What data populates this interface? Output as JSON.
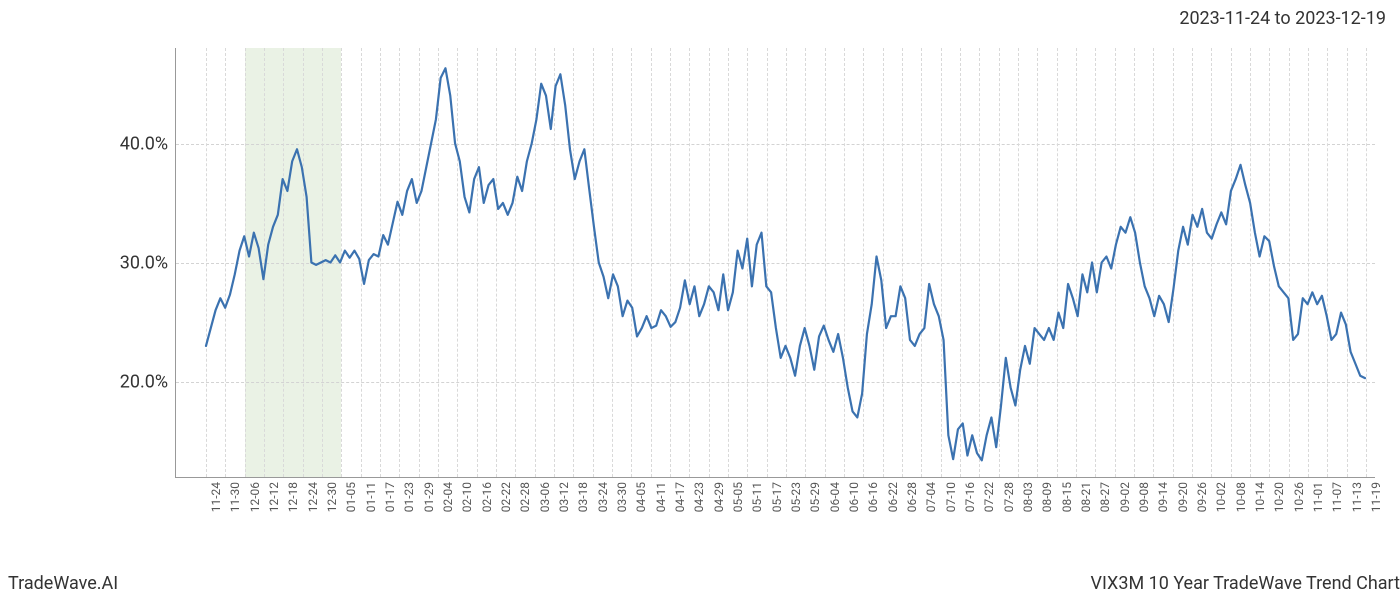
{
  "header": {
    "date_range": "2023-11-24 to 2023-12-19"
  },
  "footer": {
    "brand": "TradeWave.AI",
    "title": "VIX3M 10 Year TradeWave Trend Chart"
  },
  "chart": {
    "type": "line",
    "background_color": "#ffffff",
    "grid_color": "#d3d3d3",
    "axis_color": "#999999",
    "line_color": "#3b72b0",
    "line_width": 2.2,
    "highlight_band": {
      "color": "#d8e8d0",
      "opacity": 0.55,
      "x_start_index": 2,
      "x_end_index": 7
    },
    "y_axis": {
      "min": 12,
      "max": 48,
      "ticks": [
        20,
        30,
        40
      ],
      "tick_format_suffix": ".0%",
      "label_fontsize": 18
    },
    "x_axis": {
      "labels": [
        "11-24",
        "11-30",
        "12-06",
        "12-12",
        "12-18",
        "12-24",
        "12-30",
        "01-05",
        "01-11",
        "01-17",
        "01-23",
        "01-29",
        "02-04",
        "02-10",
        "02-16",
        "02-22",
        "02-28",
        "03-06",
        "03-12",
        "03-18",
        "03-24",
        "03-30",
        "04-05",
        "04-11",
        "04-17",
        "04-23",
        "04-29",
        "05-05",
        "05-11",
        "05-17",
        "05-23",
        "05-29",
        "06-04",
        "06-10",
        "06-16",
        "06-22",
        "06-28",
        "07-04",
        "07-10",
        "07-16",
        "07-22",
        "07-28",
        "08-03",
        "08-09",
        "08-15",
        "08-21",
        "08-27",
        "09-02",
        "09-08",
        "09-14",
        "09-20",
        "09-26",
        "10-02",
        "10-08",
        "10-14",
        "10-20",
        "10-26",
        "11-01",
        "11-07",
        "11-13",
        "11-19"
      ],
      "label_fontsize": 12,
      "label_rotation_deg": -90
    },
    "series": {
      "name": "VIX3M_trend",
      "y": [
        23.0,
        24.5,
        26.0,
        27.0,
        26.2,
        27.3,
        29.0,
        31.0,
        32.2,
        30.5,
        32.5,
        31.2,
        28.6,
        31.5,
        33.0,
        34.0,
        37.0,
        36.0,
        38.5,
        39.5,
        38.0,
        35.5,
        30.0,
        29.8,
        30.0,
        30.2,
        30.0,
        30.6,
        30.0,
        31.0,
        30.4,
        31.0,
        30.3,
        28.2,
        30.2,
        30.7,
        30.5,
        32.3,
        31.5,
        33.3,
        35.1,
        34.0,
        36.0,
        37.0,
        35.0,
        36.0,
        38.0,
        40.0,
        42.0,
        45.5,
        46.3,
        44.0,
        40.0,
        38.5,
        35.5,
        34.2,
        37.0,
        38.0,
        35.0,
        36.5,
        37.0,
        34.5,
        35.0,
        34.0,
        35.0,
        37.2,
        36.0,
        38.5,
        40.0,
        42.0,
        45.0,
        44.0,
        41.2,
        44.8,
        45.8,
        43.2,
        39.5,
        37.0,
        38.5,
        39.5,
        36.2,
        33.0,
        30.0,
        28.8,
        27.0,
        29.0,
        28.0,
        25.5,
        26.8,
        26.2,
        23.8,
        24.5,
        25.5,
        24.5,
        24.7,
        26.0,
        25.5,
        24.6,
        25.0,
        26.2,
        28.5,
        26.5,
        28.0,
        25.5,
        26.5,
        28.0,
        27.5,
        26.0,
        29.0,
        26.0,
        27.5,
        31.0,
        29.5,
        32.0,
        28.0,
        31.5,
        32.5,
        28.0,
        27.5,
        24.5,
        22.0,
        23.0,
        22.0,
        20.5,
        23.0,
        24.5,
        23.0,
        21.0,
        23.8,
        24.7,
        23.5,
        22.5,
        24.0,
        22.0,
        19.5,
        17.5,
        17.0,
        19.0,
        24.0,
        26.5,
        30.5,
        28.5,
        24.5,
        25.5,
        25.5,
        28.0,
        27.0,
        23.5,
        23.0,
        24.0,
        24.5,
        28.2,
        26.5,
        25.5,
        23.5,
        15.5,
        13.5,
        16.0,
        16.5,
        13.8,
        15.5,
        14.0,
        13.4,
        15.5,
        17.0,
        14.5,
        18.0,
        22.0,
        19.5,
        18.0,
        21.0,
        23.0,
        21.5,
        24.5,
        24.0,
        23.5,
        24.5,
        23.5,
        25.8,
        24.5,
        28.2,
        27.0,
        25.5,
        29.0,
        27.5,
        30.0,
        27.5,
        30.0,
        30.5,
        29.5,
        31.5,
        33.0,
        32.5,
        33.8,
        32.5,
        30.0,
        28.0,
        27.0,
        25.5,
        27.2,
        26.5,
        25.0,
        27.8,
        31.0,
        33.0,
        31.5,
        34.0,
        33.0,
        34.5,
        32.5,
        32.0,
        33.2,
        34.2,
        33.2,
        36.0,
        37.0,
        38.2,
        36.5,
        35.0,
        32.5,
        30.5,
        32.2,
        31.8,
        29.7,
        28.0,
        27.5,
        27.0,
        23.5,
        24.0,
        27.0,
        26.5,
        27.5,
        26.5,
        27.2,
        25.5,
        23.5,
        24.0,
        25.8,
        24.8,
        22.5,
        21.5,
        20.5,
        20.3
      ]
    }
  }
}
